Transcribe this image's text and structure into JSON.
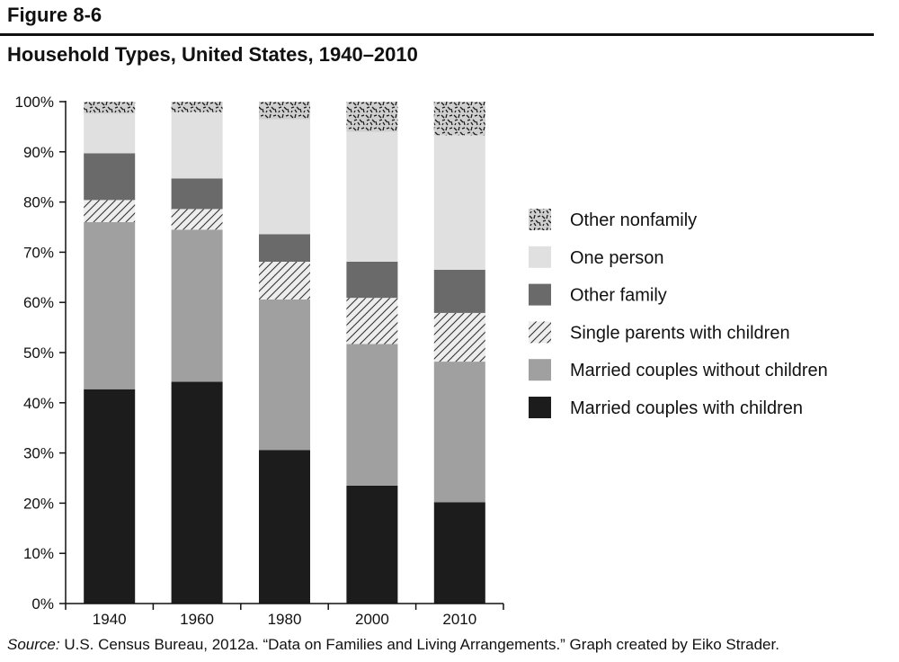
{
  "figure_label": "Figure 8-6",
  "source_prefix": "Source:",
  "source_text": " U.S. Census Bureau, 2012a. “Data on Families and Living Arrangements.” Graph created by Eiko Strader.",
  "chart_data": {
    "type": "bar",
    "stacked": true,
    "title": "Household Types, United States, 1940–2010",
    "xlabel": "",
    "ylabel": "",
    "ylim": [
      0,
      100
    ],
    "y_tick_labels": [
      "0%",
      "10%",
      "20%",
      "30%",
      "40%",
      "50%",
      "60%",
      "70%",
      "80%",
      "90%",
      "100%"
    ],
    "categories": [
      "1940",
      "1960",
      "1980",
      "2000",
      "2010"
    ],
    "legend_position": "right",
    "series": [
      {
        "name": "Married couples with children",
        "values": [
          42.7,
          44.2,
          30.6,
          23.5,
          20.2
        ],
        "color": "#1c1c1c",
        "pattern": "solid"
      },
      {
        "name": "Married couples without children",
        "values": [
          33.3,
          30.3,
          30.0,
          28.2,
          28.0
        ],
        "color": "#a0a0a0",
        "pattern": "solid"
      },
      {
        "name": "Single parents with children",
        "values": [
          4.4,
          4.1,
          7.5,
          9.2,
          9.7
        ],
        "color": "#e6e6e6",
        "pattern": "hatch"
      },
      {
        "name": "Other family",
        "values": [
          9.3,
          6.1,
          5.5,
          7.2,
          8.6
        ],
        "color": "#6a6a6a",
        "pattern": "solid"
      },
      {
        "name": "One person",
        "values": [
          7.9,
          13.2,
          22.9,
          25.9,
          26.8
        ],
        "color": "#e0e0e0",
        "pattern": "solid"
      },
      {
        "name": "Other nonfamily",
        "values": [
          2.4,
          2.1,
          3.5,
          6.0,
          6.7
        ],
        "color": "#c4c4c4",
        "pattern": "speckle"
      }
    ]
  }
}
